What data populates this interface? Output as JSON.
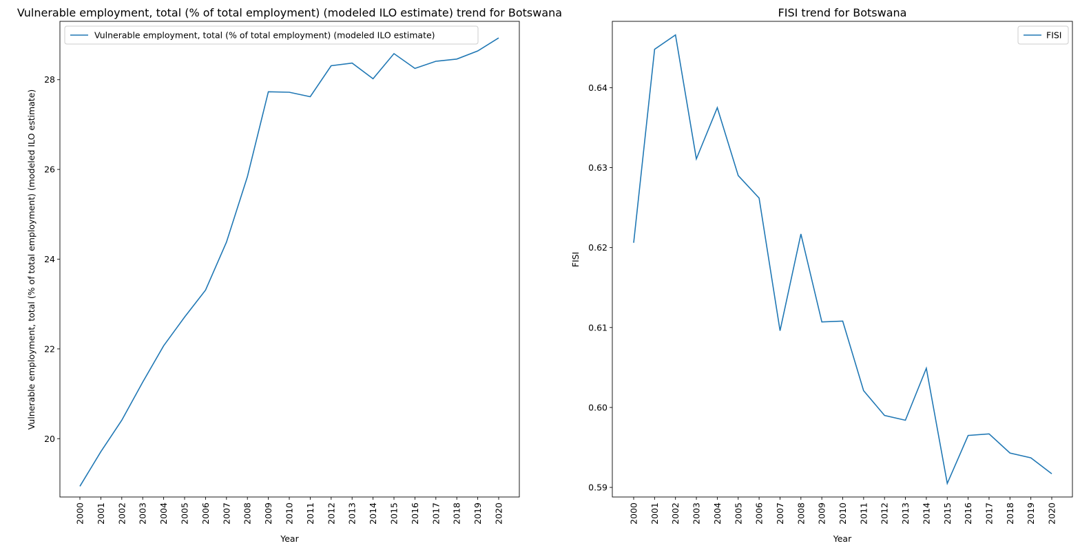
{
  "chart_data": [
    {
      "type": "line",
      "title": "Vulnerable employment, total (% of total employment) (modeled ILO estimate) trend for Botswana",
      "xlabel": "Year",
      "ylabel": "Vulnerable employment, total (% of total employment) (modeled ILO estimate)",
      "x": [
        "2000",
        "2001",
        "2002",
        "2003",
        "2004",
        "2005",
        "2006",
        "2007",
        "2008",
        "2009",
        "2010",
        "2011",
        "2012",
        "2013",
        "2014",
        "2015",
        "2016",
        "2017",
        "2018",
        "2019",
        "2020"
      ],
      "yticks": [
        "20",
        "22",
        "24",
        "26",
        "28"
      ],
      "ylim": [
        18.7,
        29.3
      ],
      "legend_position": "upper left",
      "series": [
        {
          "name": "Vulnerable employment, total (% of total employment) (modeled ILO estimate)",
          "color": "#1f77b4",
          "values": [
            18.94,
            19.71,
            20.41,
            21.26,
            22.07,
            22.71,
            23.31,
            24.38,
            25.84,
            27.73,
            27.72,
            27.62,
            28.31,
            28.37,
            28.02,
            28.58,
            28.25,
            28.41,
            28.46,
            28.64,
            28.93
          ]
        }
      ]
    },
    {
      "type": "line",
      "title": "FISI trend for Botswana",
      "xlabel": "Year",
      "ylabel": "FISI",
      "x": [
        "2000",
        "2001",
        "2002",
        "2003",
        "2004",
        "2005",
        "2006",
        "2007",
        "2008",
        "2009",
        "2010",
        "2011",
        "2012",
        "2013",
        "2014",
        "2015",
        "2016",
        "2017",
        "2018",
        "2019",
        "2020"
      ],
      "yticks": [
        "0.59",
        "0.60",
        "0.61",
        "0.62",
        "0.63",
        "0.64"
      ],
      "ylim": [
        0.5888,
        0.6483
      ],
      "legend_position": "upper right",
      "series": [
        {
          "name": "FISI",
          "color": "#1f77b4",
          "values": [
            0.6206,
            0.6448,
            0.6466,
            0.6311,
            0.6375,
            0.629,
            0.6262,
            0.6096,
            0.6217,
            0.6107,
            0.6108,
            0.6021,
            0.599,
            0.5984,
            0.6049,
            0.5905,
            0.5965,
            0.5967,
            0.5943,
            0.5937,
            0.5917
          ]
        }
      ]
    }
  ]
}
